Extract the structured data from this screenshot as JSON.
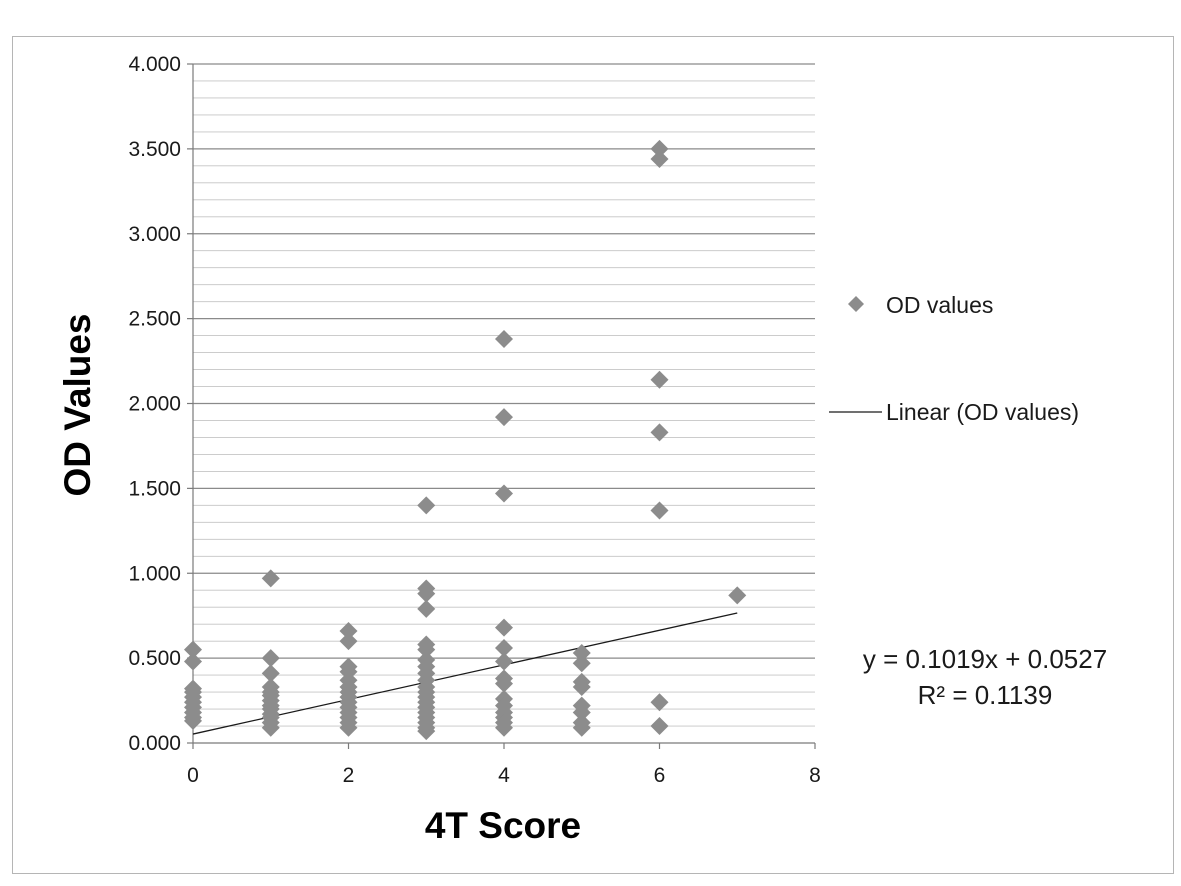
{
  "chart_data": {
    "type": "scatter",
    "xlabel": "4T Score",
    "ylabel": "OD Values",
    "xlim": [
      0,
      8
    ],
    "ylim": [
      0,
      4
    ],
    "x_ticks": [
      "0",
      "2",
      "4",
      "6",
      "8"
    ],
    "y_ticks": [
      "0.000",
      "0.500",
      "1.000",
      "1.500",
      "2.000",
      "2.500",
      "3.000",
      "3.500",
      "4.000"
    ],
    "grid": "horizontal major and minor gridlines",
    "legend_position": "right",
    "series": [
      {
        "name": "OD values",
        "marker": "diamond",
        "color": "#8c8c8c",
        "points": [
          {
            "x": 0,
            "y": 0.55
          },
          {
            "x": 0,
            "y": 0.48
          },
          {
            "x": 0,
            "y": 0.32
          },
          {
            "x": 0,
            "y": 0.3
          },
          {
            "x": 0,
            "y": 0.27
          },
          {
            "x": 0,
            "y": 0.24
          },
          {
            "x": 0,
            "y": 0.21
          },
          {
            "x": 0,
            "y": 0.18
          },
          {
            "x": 0,
            "y": 0.15
          },
          {
            "x": 0,
            "y": 0.13
          },
          {
            "x": 1,
            "y": 0.97
          },
          {
            "x": 1,
            "y": 0.5
          },
          {
            "x": 1,
            "y": 0.41
          },
          {
            "x": 1,
            "y": 0.33
          },
          {
            "x": 1,
            "y": 0.3
          },
          {
            "x": 1,
            "y": 0.28
          },
          {
            "x": 1,
            "y": 0.25
          },
          {
            "x": 1,
            "y": 0.22
          },
          {
            "x": 1,
            "y": 0.2
          },
          {
            "x": 1,
            "y": 0.17
          },
          {
            "x": 1,
            "y": 0.15
          },
          {
            "x": 1,
            "y": 0.12
          },
          {
            "x": 1,
            "y": 0.09
          },
          {
            "x": 2,
            "y": 0.66
          },
          {
            "x": 2,
            "y": 0.6
          },
          {
            "x": 2,
            "y": 0.45
          },
          {
            "x": 2,
            "y": 0.42
          },
          {
            "x": 2,
            "y": 0.37
          },
          {
            "x": 2,
            "y": 0.33
          },
          {
            "x": 2,
            "y": 0.3
          },
          {
            "x": 2,
            "y": 0.27
          },
          {
            "x": 2,
            "y": 0.24
          },
          {
            "x": 2,
            "y": 0.21
          },
          {
            "x": 2,
            "y": 0.18
          },
          {
            "x": 2,
            "y": 0.15
          },
          {
            "x": 2,
            "y": 0.12
          },
          {
            "x": 2,
            "y": 0.09
          },
          {
            "x": 3,
            "y": 1.4
          },
          {
            "x": 3,
            "y": 0.91
          },
          {
            "x": 3,
            "y": 0.88
          },
          {
            "x": 3,
            "y": 0.79
          },
          {
            "x": 3,
            "y": 0.58
          },
          {
            "x": 3,
            "y": 0.55
          },
          {
            "x": 3,
            "y": 0.49
          },
          {
            "x": 3,
            "y": 0.45
          },
          {
            "x": 3,
            "y": 0.41
          },
          {
            "x": 3,
            "y": 0.37
          },
          {
            "x": 3,
            "y": 0.33
          },
          {
            "x": 3,
            "y": 0.3
          },
          {
            "x": 3,
            "y": 0.27
          },
          {
            "x": 3,
            "y": 0.24
          },
          {
            "x": 3,
            "y": 0.21
          },
          {
            "x": 3,
            "y": 0.18
          },
          {
            "x": 3,
            "y": 0.15
          },
          {
            "x": 3,
            "y": 0.12
          },
          {
            "x": 3,
            "y": 0.09
          },
          {
            "x": 3,
            "y": 0.07
          },
          {
            "x": 4,
            "y": 2.38
          },
          {
            "x": 4,
            "y": 1.92
          },
          {
            "x": 4,
            "y": 1.47
          },
          {
            "x": 4,
            "y": 0.68
          },
          {
            "x": 4,
            "y": 0.56
          },
          {
            "x": 4,
            "y": 0.48
          },
          {
            "x": 4,
            "y": 0.38
          },
          {
            "x": 4,
            "y": 0.35
          },
          {
            "x": 4,
            "y": 0.26
          },
          {
            "x": 4,
            "y": 0.22
          },
          {
            "x": 4,
            "y": 0.18
          },
          {
            "x": 4,
            "y": 0.15
          },
          {
            "x": 4,
            "y": 0.12
          },
          {
            "x": 4,
            "y": 0.09
          },
          {
            "x": 5,
            "y": 0.53
          },
          {
            "x": 5,
            "y": 0.47
          },
          {
            "x": 5,
            "y": 0.36
          },
          {
            "x": 5,
            "y": 0.33
          },
          {
            "x": 5,
            "y": 0.22
          },
          {
            "x": 5,
            "y": 0.18
          },
          {
            "x": 5,
            "y": 0.12
          },
          {
            "x": 5,
            "y": 0.09
          },
          {
            "x": 6,
            "y": 3.5
          },
          {
            "x": 6,
            "y": 3.44
          },
          {
            "x": 6,
            "y": 2.14
          },
          {
            "x": 6,
            "y": 1.83
          },
          {
            "x": 6,
            "y": 1.37
          },
          {
            "x": 6,
            "y": 0.24
          },
          {
            "x": 6,
            "y": 0.1
          },
          {
            "x": 7,
            "y": 0.87
          }
        ]
      },
      {
        "name": "Linear (OD values)",
        "type": "line",
        "color": "#1a1a1a",
        "slope": 0.1019,
        "intercept": 0.0527,
        "x_range": [
          0,
          7
        ]
      }
    ],
    "trendline_equation": "y = 0.1019x + 0.0527",
    "r_squared": "R² = 0.1139"
  }
}
